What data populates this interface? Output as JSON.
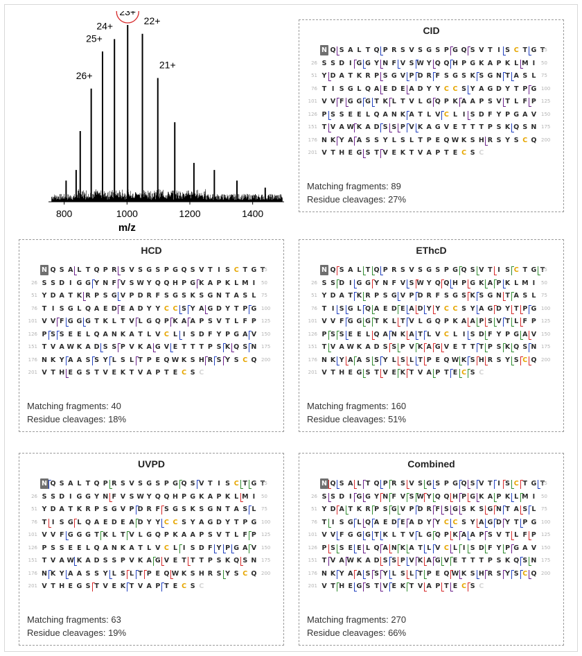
{
  "figure": {
    "spectrum": {
      "x_axis_label": "m/z",
      "x_tick_labels": [
        "800",
        "1000",
        "1200",
        "1400"
      ],
      "charge_state_labels": [
        "26+",
        "25+",
        "24+",
        "23+",
        "22+",
        "21+"
      ],
      "highlighted_label": "23+",
      "colors": {
        "highlight_circle": "#d62728",
        "trace": "#000000"
      }
    }
  },
  "chart_data": {
    "type": "line",
    "title": "",
    "xlabel": "m/z",
    "ylabel": "",
    "xlim": [
      750,
      1500
    ],
    "ylim": [
      0,
      100
    ],
    "grid": false,
    "x_ticks": [
      800,
      1000,
      1200,
      1400
    ],
    "peaks": [
      {
        "mz": 806,
        "intensity": 12,
        "charge": ""
      },
      {
        "mz": 838,
        "intensity": 18,
        "charge": ""
      },
      {
        "mz": 851,
        "intensity": 40,
        "charge": ""
      },
      {
        "mz": 886,
        "intensity": 64,
        "charge": "26+"
      },
      {
        "mz": 922,
        "intensity": 85,
        "charge": "25+"
      },
      {
        "mz": 960,
        "intensity": 92,
        "charge": "24+"
      },
      {
        "mz": 1002,
        "intensity": 100,
        "charge": "23+"
      },
      {
        "mz": 1049,
        "intensity": 95,
        "charge": "22+"
      },
      {
        "mz": 1098,
        "intensity": 70,
        "charge": "21+"
      },
      {
        "mz": 1152,
        "intensity": 45,
        "charge": ""
      },
      {
        "mz": 1213,
        "intensity": 22,
        "charge": ""
      },
      {
        "mz": 1278,
        "intensity": 18,
        "charge": ""
      },
      {
        "mz": 1350,
        "intensity": 12,
        "charge": ""
      },
      {
        "mz": 1440,
        "intensity": 8,
        "charge": ""
      }
    ]
  },
  "sequence": {
    "rows": [
      {
        "start": "",
        "end": "25",
        "residues": "NQSALTQPRSVSGSPGQSVTISCTGT"
      },
      {
        "start": "26",
        "end": "50",
        "residues": "SSDIGGYNFVSWYQQHPGKAPKLMI"
      },
      {
        "start": "51",
        "end": "75",
        "residues": "YDATKRPSGVPDRFSGSKSGNTASL"
      },
      {
        "start": "76",
        "end": "100",
        "residues": "TISGLQAEDEADYYCCSYAGDYTPG"
      },
      {
        "start": "101",
        "end": "125",
        "residues": "VVFGGGTKLTVLGQPKAAPSVTLFP"
      },
      {
        "start": "126",
        "end": "150",
        "residues": "PSSEELQANKATLVCLISDFYPGAV"
      },
      {
        "start": "151",
        "end": "175",
        "residues": "TVAWKADSSPVKAGVETTTPSKQSN"
      },
      {
        "start": "176",
        "end": "200",
        "residues": "NKYAASSYLSLTPEQWKSHRSYSCQ"
      },
      {
        "start": "201",
        "end": "",
        "residues": "VTHEGSTVEKTVAPTECS"
      }
    ],
    "n_terminal_residue_label": "N",
    "trailing_residue_label": "C",
    "colors": {
      "cys": "#e6a600",
      "b_ion": "#1f3fbf",
      "y_ion": "#6a1f8a",
      "c_ion": "#2e8b2e",
      "z_ion": "#d62728"
    }
  },
  "panels": [
    {
      "title": "CID",
      "matching_label": "Matching fragments: 89",
      "cleavage_label": "Residue cleavages: 27%",
      "coverage_pct": 27,
      "colors": [
        "#1f3fbf",
        "#6a1f8a"
      ]
    },
    {
      "title": "HCD",
      "matching_label": "Matching fragments: 40",
      "cleavage_label": "Residue cleavages: 18%",
      "coverage_pct": 18,
      "colors": [
        "#1f3fbf",
        "#6a1f8a"
      ]
    },
    {
      "title": "EThcD",
      "matching_label": "Matching fragments: 160",
      "cleavage_label": "Residue cleavages: 51%",
      "coverage_pct": 51,
      "colors": [
        "#d62728",
        "#2e8b2e",
        "#1f3fbf"
      ]
    },
    {
      "title": "UVPD",
      "matching_label": "Matching fragments: 63",
      "cleavage_label": "Residue cleavages: 19%",
      "coverage_pct": 19,
      "colors": [
        "#2e8b2e",
        "#d62728",
        "#1f3fbf"
      ]
    },
    {
      "title": "Combined",
      "matching_label": "Matching fragments: 270",
      "cleavage_label": "Residue cleavages: 66%",
      "coverage_pct": 66,
      "colors": [
        "#d62728",
        "#2e8b2e",
        "#1f3fbf",
        "#6a1f8a"
      ]
    }
  ]
}
